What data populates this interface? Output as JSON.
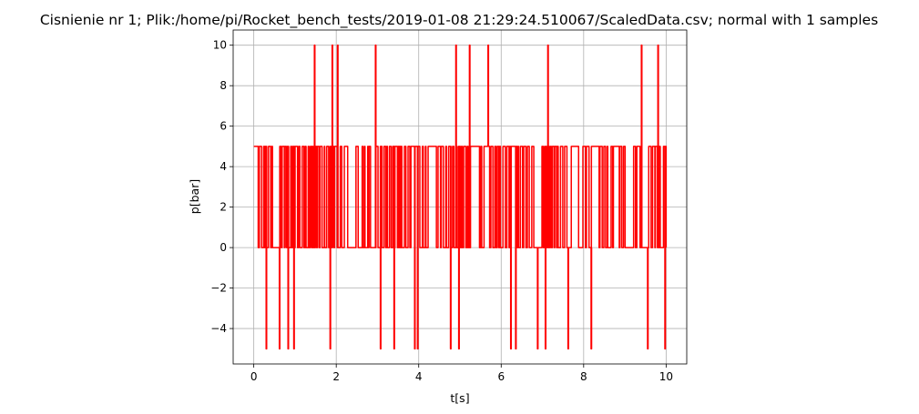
{
  "chart_data": {
    "type": "line",
    "title": "Cisnienie nr 1; Plik:/home/pi/Rocket_bench_tests/2019-01-08 21:29:24.510067/ScaledData.csv; normal with 1 samples",
    "xlabel": "t[s]",
    "ylabel": "p[bar]",
    "xlim": [
      -0.5,
      10.5
    ],
    "ylim": [
      -5.75,
      10.75
    ],
    "xticks": [
      0,
      2,
      4,
      6,
      8,
      10
    ],
    "yticks": [
      -4,
      -2,
      0,
      2,
      4,
      6,
      8,
      10
    ],
    "grid": true,
    "series_color": "#ff0000",
    "x_start": 0,
    "x_end": 10,
    "baseline_levels": [
      0,
      5
    ],
    "spikes": [
      {
        "t": 0.3,
        "value": -5
      },
      {
        "t": 0.62,
        "value": -5
      },
      {
        "t": 0.83,
        "value": -5
      },
      {
        "t": 0.97,
        "value": -5
      },
      {
        "t": 1.47,
        "value": 10
      },
      {
        "t": 1.85,
        "value": -5
      },
      {
        "t": 1.9,
        "value": 10
      },
      {
        "t": 2.03,
        "value": 10
      },
      {
        "t": 2.95,
        "value": 10
      },
      {
        "t": 3.07,
        "value": -5
      },
      {
        "t": 3.4,
        "value": -5
      },
      {
        "t": 3.9,
        "value": -5
      },
      {
        "t": 3.97,
        "value": -5
      },
      {
        "t": 4.77,
        "value": -5
      },
      {
        "t": 4.9,
        "value": 10
      },
      {
        "t": 4.97,
        "value": -5
      },
      {
        "t": 5.23,
        "value": 10
      },
      {
        "t": 5.68,
        "value": 10
      },
      {
        "t": 6.23,
        "value": -5
      },
      {
        "t": 6.35,
        "value": -5
      },
      {
        "t": 6.88,
        "value": -5
      },
      {
        "t": 7.07,
        "value": -5
      },
      {
        "t": 7.13,
        "value": 10
      },
      {
        "t": 7.62,
        "value": -5
      },
      {
        "t": 8.18,
        "value": -5
      },
      {
        "t": 9.4,
        "value": 10
      },
      {
        "t": 9.55,
        "value": -5
      },
      {
        "t": 9.8,
        "value": 10
      },
      {
        "t": 9.97,
        "value": -5
      }
    ]
  }
}
